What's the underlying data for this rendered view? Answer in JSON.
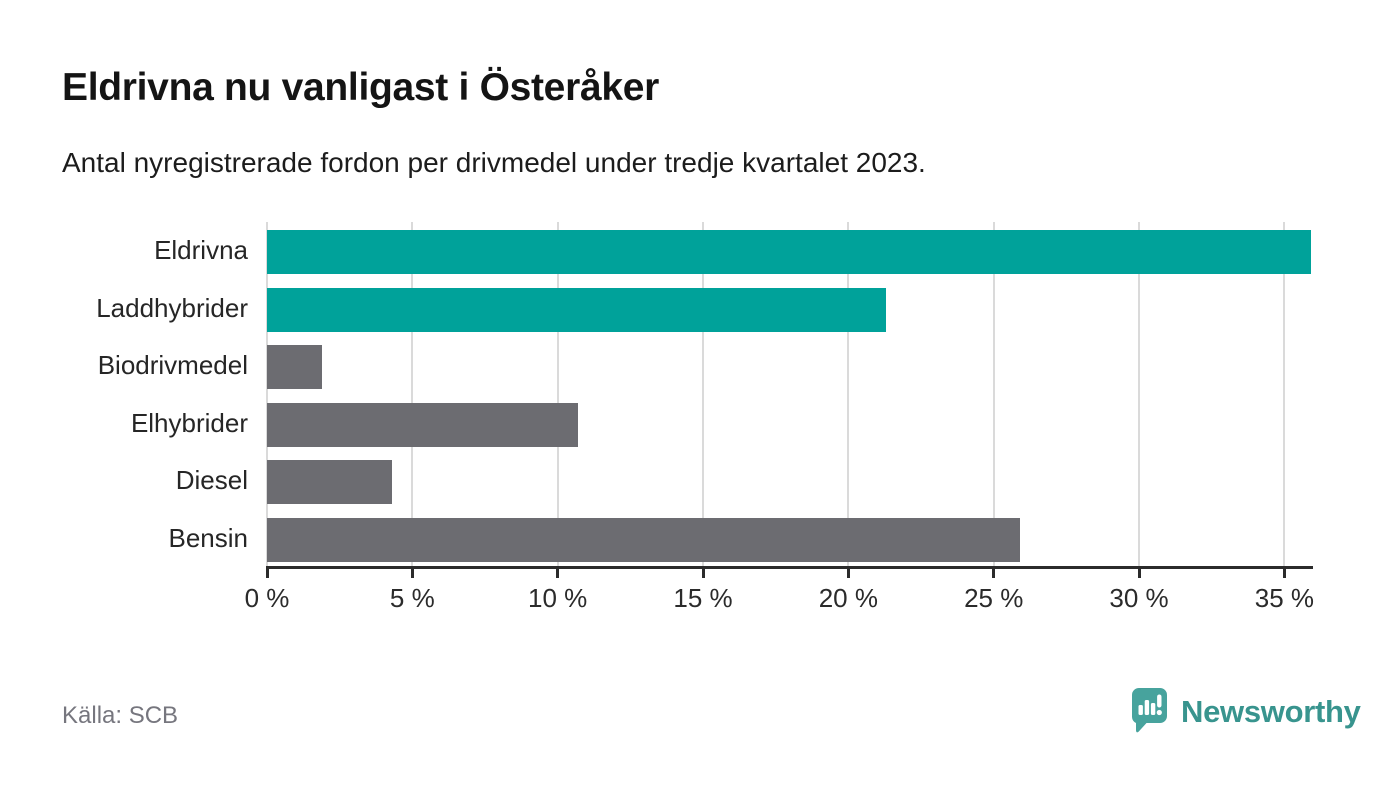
{
  "header": {
    "title": "Eldrivna nu vanligast i Österåker",
    "subtitle": "Antal nyregistrerade fordon per drivmedel under tredje kvartalet 2023."
  },
  "chart_data": {
    "type": "bar",
    "orientation": "horizontal",
    "categories": [
      "Eldrivna",
      "Laddhybrider",
      "Biodrivmedel",
      "Elhybrider",
      "Diesel",
      "Bensin"
    ],
    "values": [
      35.9,
      21.3,
      1.9,
      10.7,
      4.3,
      25.9
    ],
    "unit": "%",
    "xlim": [
      0,
      35.95
    ],
    "x_ticks": [
      0,
      5,
      10,
      15,
      20,
      25,
      30,
      35
    ],
    "x_tick_labels": [
      "0 %",
      "5 %",
      "10 %",
      "15 %",
      "20 %",
      "25 %",
      "30 %",
      "35 %"
    ],
    "bar_colors": [
      "#00a29a",
      "#00a29a",
      "#6c6c71",
      "#6c6c71",
      "#6c6c71",
      "#6c6c71"
    ],
    "highlight_color": "#00a29a",
    "default_color": "#6c6c71",
    "grid": true,
    "grid_color": "#dadada",
    "axis_color": "#2b2b2b"
  },
  "footer": {
    "source": "Källa: SCB",
    "brand": "Newsworthy"
  },
  "colors": {
    "accent_teal": "#00a29a",
    "neutral_gray": "#6c6c71",
    "logo_bubble": "#47a39d",
    "logo_text": "#38948e"
  },
  "icons": {
    "logo": "newsworthy-speech-bubble-chart-icon"
  }
}
